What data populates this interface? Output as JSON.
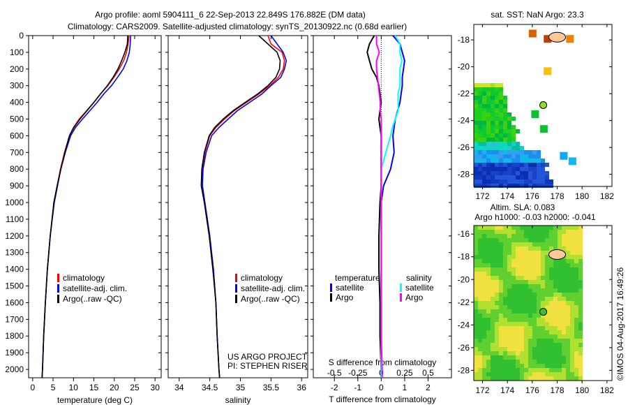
{
  "title_line1": "Argo profile: aoml 5904111_6 22-Sep-2013 22.849S 176.882E (DM data)",
  "title_line2": "Climatology: CARS2009. Satellite-adjusted climatology: synTS_20130922.nc (0.68d earlier)",
  "credit": "©IMOS 04-Aug-2017 16:49:26",
  "project_line1": "US ARGO PROJECT",
  "project_line2": "PI: STEPHEN RISER",
  "colors": {
    "climatology": "#ff0000",
    "satellite": "#0000ff",
    "argo": "#000000",
    "sal_satellite": "#00ffff",
    "sal_argo": "#ff00ff"
  },
  "chart_data": [
    {
      "type": "line",
      "name": "temperature-profile",
      "xlabel": "temperature (deg C)",
      "xlim": [
        -1,
        31.5
      ],
      "ylim": [
        2050,
        0
      ],
      "xticks": [
        0,
        5,
        10,
        15,
        20,
        25,
        30
      ],
      "yticks": [
        0,
        100,
        200,
        300,
        400,
        500,
        600,
        700,
        800,
        900,
        1000,
        1100,
        1200,
        1300,
        1400,
        1500,
        1600,
        1700,
        1800,
        1900,
        2000
      ],
      "legend": [
        "climatology",
        "satellite-adj. clim.",
        "Argo(..raw -QC)"
      ],
      "depth": [
        0,
        50,
        100,
        150,
        200,
        250,
        300,
        350,
        400,
        450,
        500,
        550,
        600,
        700,
        800,
        900,
        1000,
        1200,
        1400,
        1600,
        1800,
        2000,
        2050
      ],
      "series": [
        {
          "name": "climatology",
          "color": "#ff0000",
          "values": [
            23.6,
            23.4,
            23.0,
            22.3,
            21.2,
            19.9,
            18.4,
            16.6,
            15.0,
            13.2,
            11.4,
            10.0,
            9.0,
            7.8,
            6.8,
            6.0,
            5.2,
            4.3,
            3.6,
            3.1,
            2.7,
            2.4,
            2.3
          ]
        },
        {
          "name": "satellite-adj. clim.",
          "color": "#0000ff",
          "values": [
            24.0,
            23.9,
            23.7,
            23.1,
            22.2,
            20.8,
            19.3,
            17.4,
            15.8,
            14.0,
            12.2,
            10.5,
            9.3,
            8.0,
            6.9,
            6.1,
            5.3,
            4.3,
            3.6,
            3.1,
            2.7,
            2.4,
            2.3
          ]
        },
        {
          "name": "Argo(..raw -QC)",
          "color": "#000000",
          "values": [
            23.3,
            23.2,
            22.6,
            21.8,
            20.9,
            19.7,
            18.3,
            16.6,
            15.0,
            13.3,
            11.6,
            10.1,
            9.0,
            7.9,
            6.9,
            6.0,
            5.2,
            4.3,
            3.6,
            3.1,
            2.7,
            2.4,
            2.3
          ]
        }
      ]
    },
    {
      "type": "line",
      "name": "salinity-profile",
      "xlabel": "salinity",
      "xlim": [
        33.82,
        36.1
      ],
      "ylim": [
        2050,
        0
      ],
      "xticks": [
        34,
        34.5,
        35,
        35.5,
        36
      ],
      "legend": [
        "climatology",
        "satellite-adj. clim.",
        "Argo(..raw -QC)"
      ],
      "depth": [
        0,
        50,
        100,
        150,
        200,
        250,
        300,
        350,
        400,
        450,
        500,
        550,
        600,
        700,
        800,
        900,
        1000,
        1200,
        1400,
        1600,
        1800,
        2000,
        2050
      ],
      "series": [
        {
          "name": "climatology",
          "color": "#ff0000",
          "values": [
            35.45,
            35.5,
            35.68,
            35.72,
            35.7,
            35.62,
            35.48,
            35.3,
            35.1,
            34.9,
            34.74,
            34.6,
            34.5,
            34.42,
            34.38,
            34.38,
            34.42,
            34.5,
            34.56,
            34.6,
            34.62,
            34.65,
            34.66
          ]
        },
        {
          "name": "satellite-adj. clim.",
          "color": "#0000ff",
          "values": [
            35.5,
            35.6,
            35.7,
            35.75,
            35.72,
            35.66,
            35.5,
            35.35,
            35.15,
            34.95,
            34.8,
            34.65,
            34.53,
            34.44,
            34.39,
            34.38,
            34.42,
            34.5,
            34.56,
            34.6,
            34.62,
            34.65,
            34.66
          ]
        },
        {
          "name": "Argo(..raw -QC)",
          "color": "#000000",
          "values": [
            35.3,
            35.45,
            35.6,
            35.65,
            35.64,
            35.58,
            35.45,
            35.28,
            35.08,
            34.88,
            34.72,
            34.58,
            34.49,
            34.41,
            34.37,
            34.36,
            34.41,
            34.49,
            34.55,
            34.6,
            34.62,
            34.65,
            34.66
          ]
        }
      ]
    },
    {
      "type": "line",
      "name": "difference-profile",
      "xlabel": "T difference from climatology",
      "x2label": "S difference from climatology",
      "xlim": [
        -2.9,
        3.0
      ],
      "x2lim": [
        -0.725,
        0.75
      ],
      "ylim": [
        2050,
        0
      ],
      "xticks": [
        -2,
        -1,
        0,
        1,
        2
      ],
      "x2ticks": [
        -0.5,
        -0.25,
        0,
        0.25,
        0.5
      ],
      "x2ticklabels": [
        "-0.5",
        "-0.25",
        "0",
        "0.25",
        "0.5"
      ],
      "legend_temperature_title": "temperature",
      "legend_salinity_title": "salinity",
      "legend": [
        "satellite",
        "Argo",
        "satellite",
        "Argo"
      ],
      "depth": [
        0,
        50,
        100,
        150,
        200,
        250,
        300,
        350,
        400,
        450,
        500,
        550,
        600,
        700,
        800,
        900,
        1000,
        1200,
        1400,
        1600,
        1800,
        2000,
        2050
      ],
      "series": [
        {
          "name": "T satellite",
          "axis": "T",
          "color": "#0000ff",
          "values": [
            0.5,
            0.8,
            0.9,
            1.0,
            0.95,
            0.9,
            0.9,
            0.85,
            0.8,
            0.7,
            0.6,
            0.55,
            0.5,
            0.55,
            0.4,
            0.1,
            0.0,
            0.0,
            0.0,
            0.0,
            0.0,
            0.0,
            0.0
          ]
        },
        {
          "name": "T Argo",
          "axis": "T",
          "color": "#000000",
          "values": [
            -0.3,
            -0.5,
            -0.6,
            -0.5,
            -0.4,
            -0.2,
            -0.1,
            -0.05,
            0.0,
            -0.05,
            -0.1,
            -0.05,
            0.0,
            0.0,
            0.0,
            0.0,
            -0.05,
            -0.1,
            -0.1,
            -0.05,
            -0.05,
            0.0,
            0.0
          ]
        },
        {
          "name": "S satellite",
          "axis": "S",
          "color": "#00ffff",
          "values": [
            0.15,
            0.2,
            0.2,
            0.22,
            0.2,
            0.2,
            0.2,
            0.18,
            0.18,
            0.18,
            0.15,
            0.12,
            0.1,
            0.05,
            0.0,
            0.0,
            0.0,
            0.0,
            0.0,
            0.0,
            0.0,
            0.0,
            0.0
          ]
        },
        {
          "name": "S Argo",
          "axis": "S",
          "color": "#ff00ff",
          "values": [
            -0.05,
            -0.05,
            -0.02,
            -0.05,
            -0.05,
            -0.04,
            -0.03,
            -0.02,
            -0.01,
            -0.01,
            0.0,
            0.0,
            0.0,
            0.0,
            0.0,
            0.0,
            0.0,
            0.0,
            0.0,
            0.0,
            0.0,
            0.01,
            0.01
          ]
        }
      ]
    },
    {
      "type": "heatmap",
      "name": "sst-map",
      "title": "sat. SST: NaN Argo: 23.3",
      "xlim": [
        171.3,
        182.4
      ],
      "ylim": [
        -28.9,
        -16.85
      ],
      "xticks": [
        172,
        174,
        176,
        178,
        180,
        182
      ],
      "yticks": [
        -18,
        -20,
        -22,
        -24,
        -26,
        -28
      ],
      "float_position": [
        176.882,
        -22.849
      ]
    },
    {
      "type": "heatmap",
      "name": "sla-map",
      "title_line1": "Altim. SLA: 0.083",
      "title_line2": "Argo h1000: -0.03 h2000: -0.041",
      "xlim": [
        171.3,
        182.4
      ],
      "ylim": [
        -28.9,
        -15.25
      ],
      "xticks": [
        172,
        174,
        176,
        178,
        180,
        182
      ],
      "yticks": [
        -16,
        -18,
        -20,
        -22,
        -24,
        -26,
        -28
      ],
      "float_position": [
        176.882,
        -22.849
      ]
    }
  ]
}
